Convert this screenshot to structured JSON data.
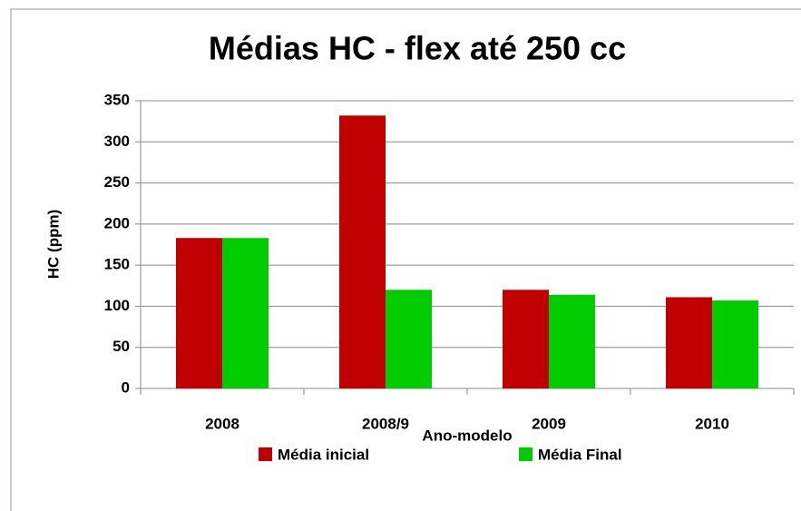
{
  "chart_data": {
    "type": "bar",
    "title": "Médias HC - flex até 250 cc",
    "x_label": "Ano-modelo",
    "y_label": "HC (ppm)",
    "categories": [
      "2008",
      "2008/9",
      "2009",
      "2010"
    ],
    "series": [
      {
        "name": "Média inicial",
        "color": "#c00000",
        "values": [
          183,
          332,
          120,
          111
        ]
      },
      {
        "name": "Média Final",
        "color": "#00cc00",
        "values": [
          183,
          120,
          114,
          107
        ]
      }
    ],
    "ylim": [
      0,
      350
    ],
    "yticks": [
      0,
      50,
      100,
      150,
      200,
      250,
      300,
      350
    ],
    "grid": true,
    "legend": "bottom"
  }
}
